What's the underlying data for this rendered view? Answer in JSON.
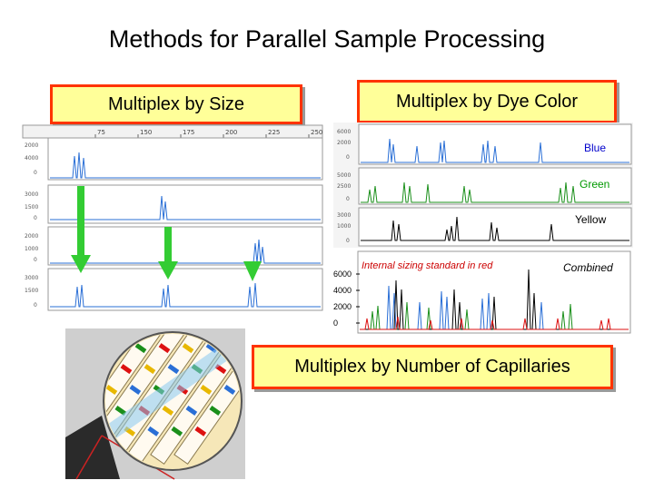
{
  "title": "Methods for Parallel Sample Processing",
  "boxes": {
    "size": "Multiplex by Size",
    "dye": "Multiplex by Dye Color",
    "capillaries": "Multiplex by Number of Capillaries"
  },
  "dye_labels": {
    "blue": "Blue",
    "green": "Green",
    "yellow": "Yellow",
    "internal": "Internal sizing standard in red",
    "combined": "Combined"
  },
  "size_axis_ticks": [
    "75",
    "150",
    "175",
    "200",
    "225",
    "250"
  ],
  "combined_y_ticks": [
    "6000",
    "4000",
    "2000",
    "0"
  ],
  "colors": {
    "box_fill": "#ffff99",
    "box_border": "#ff3300",
    "arrow": "#33cc33",
    "blue_trace": "#2a6fd6",
    "green_trace": "#1a8f1a",
    "yellow_trace": "#000000",
    "red_trace": "#dd1111"
  }
}
